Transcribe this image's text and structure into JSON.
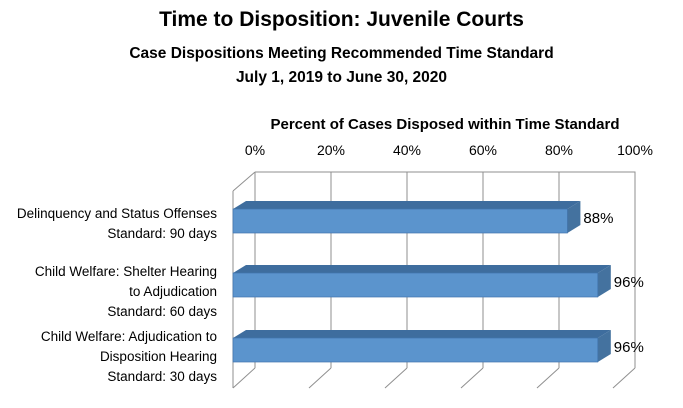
{
  "chart_data": {
    "type": "bar",
    "orientation": "horizontal",
    "projection": "3d",
    "title": "Time to Disposition: Juvenile Courts",
    "subtitle": "Case Dispositions Meeting Recommended Time Standard",
    "date_range": "July 1, 2019 to June 30, 2020",
    "xlabel": "Percent of Cases Disposed within Time Standard",
    "xlim": [
      0,
      100
    ],
    "x_ticks": [
      "0%",
      "20%",
      "40%",
      "60%",
      "80%",
      "100%"
    ],
    "grid": true,
    "legend": false,
    "categories": [
      {
        "lines": [
          "Delinquency and Status Offenses",
          "Standard: 90 days"
        ],
        "value": 88,
        "label": "88%"
      },
      {
        "lines": [
          "Child Welfare: Shelter Hearing",
          "to Adjudication",
          "Standard: 60 days"
        ],
        "value": 96,
        "label": "96%"
      },
      {
        "lines": [
          "Child Welfare: Adjudication to",
          "Disposition Hearing",
          "Standard: 30 days"
        ],
        "value": 96,
        "label": "96%"
      }
    ],
    "colors": {
      "bar_face": "#5b94cd",
      "bar_top": "#3e6d9e",
      "bar_end": "#44729f",
      "bar_edge": "#4174ad",
      "gridline": "#8f8f8f",
      "text": "#000000",
      "background": "#ffffff"
    }
  }
}
